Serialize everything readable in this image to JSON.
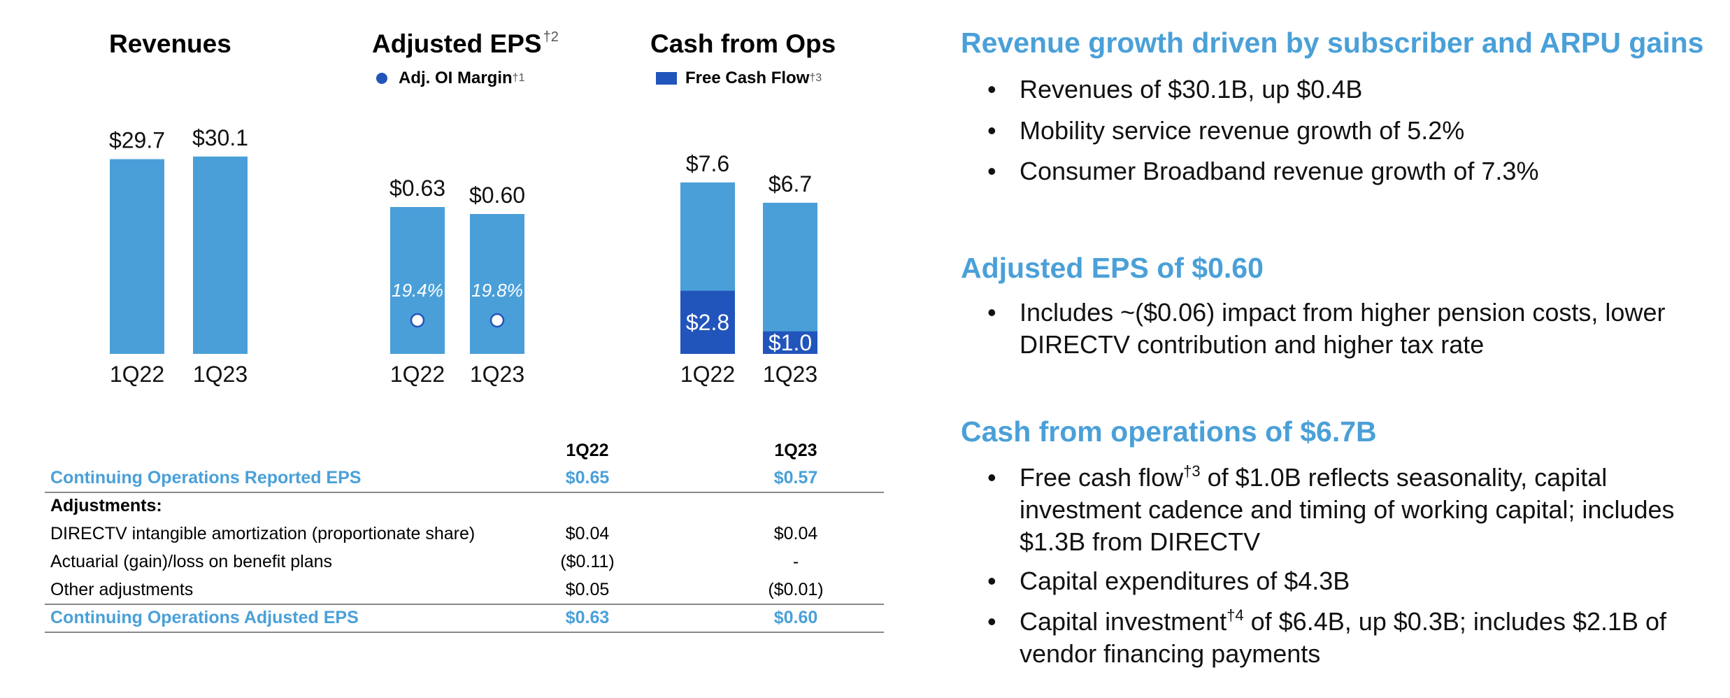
{
  "charts_titles": {
    "revenues": "Revenues",
    "eps": "Adjusted EPS",
    "eps_sup": "†2",
    "eps_legend": "Adj. OI Margin",
    "eps_legend_sup": "†1",
    "cash": "Cash from Ops",
    "cash_legend": "Free Cash Flow",
    "cash_legend_sup": "†3"
  },
  "chart_data": [
    {
      "type": "bar",
      "title": "Revenues",
      "categories": [
        "1Q22",
        "1Q23"
      ],
      "values": [
        29.7,
        30.1
      ],
      "value_labels": [
        "$29.7",
        "$30.1"
      ],
      "ylim": [
        0,
        32
      ]
    },
    {
      "type": "bar",
      "title": "Adjusted EPS",
      "categories": [
        "1Q22",
        "1Q23"
      ],
      "values": [
        0.63,
        0.6
      ],
      "value_labels": [
        "$0.63",
        "$0.60"
      ],
      "ylim": [
        0,
        0.9
      ],
      "secondary_series": {
        "name": "Adj. OI Margin",
        "values": [
          19.4,
          19.8
        ],
        "labels": [
          "19.4%",
          "19.8%"
        ]
      }
    },
    {
      "type": "bar",
      "title": "Cash from Ops",
      "categories": [
        "1Q22",
        "1Q23"
      ],
      "values": [
        7.6,
        6.7
      ],
      "value_labels": [
        "$7.6",
        "$6.7"
      ],
      "ylim": [
        0,
        9.3
      ],
      "series": [
        {
          "name": "Free Cash Flow",
          "values": [
            2.8,
            1.0
          ],
          "labels": [
            "$2.8",
            "$1.0"
          ]
        }
      ]
    }
  ],
  "table": {
    "col1": "1Q22",
    "col2": "1Q23",
    "rows": [
      {
        "label": "Continuing Operations Reported EPS",
        "v1": "$0.65",
        "v2": "$0.57"
      },
      {
        "label": "Adjustments:"
      },
      {
        "label": "DIRECTV intangible amortization (proportionate share)",
        "v1": "$0.04",
        "v2": "$0.04"
      },
      {
        "label": "Actuarial (gain)/loss on benefit plans",
        "v1": "($0.11)",
        "v2": "-"
      },
      {
        "label": "Other adjustments",
        "v1": "$0.05",
        "v2": "($0.01)"
      },
      {
        "label": "Continuing Operations Adjusted EPS",
        "v1": "$0.63",
        "v2": "$0.60"
      }
    ]
  },
  "panel": {
    "s1_head": "Revenue growth driven by subscriber and ARPU gains",
    "s1_b1": "Revenues of $30.1B, up $0.4B",
    "s1_b2": "Mobility service revenue growth of 5.2%",
    "s1_b3": "Consumer Broadband revenue growth of 7.3%",
    "s2_head": "Adjusted EPS of $0.60",
    "s2_b1": "Includes ~($0.06) impact from higher pension costs, lower DIRECTV contribution and higher tax rate",
    "s3_head": "Cash from operations of $6.7B",
    "s3_b1_a": "Free cash flow",
    "s3_b1_sup": "†3",
    "s3_b1_b": " of $1.0B reflects seasonality, capital investment cadence and timing of working capital; includes $1.3B from DIRECTV",
    "s3_b2": "Capital expenditures of $4.3B",
    "s3_b3_a": "Capital investment",
    "s3_b3_sup": "†4",
    "s3_b3_b": " of $6.4B, up $0.3B; includes $2.1B of vendor financing payments",
    "bullet": "•"
  },
  "colors": {
    "bar": "#4a9fd8",
    "fcf": "#2255bb",
    "accent": "#4aa0d8"
  }
}
